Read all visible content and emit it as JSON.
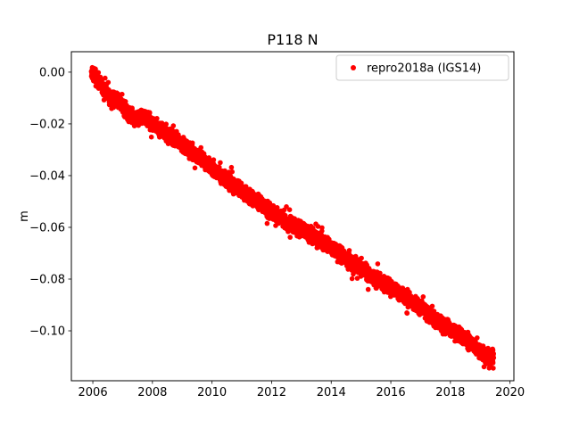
{
  "figure": {
    "title": "P118 N",
    "background_color": "#ffffff"
  },
  "legend": {
    "label": "repro2018a (IGS14)",
    "marker_color": "#ff0000",
    "position": "upper right",
    "border_color": "#cccccc"
  },
  "chart_data": {
    "type": "scatter",
    "title": "P118 N",
    "xlabel": "",
    "ylabel": "m",
    "grid": false,
    "legend_position": "upper right",
    "xlim": [
      2005.28,
      2020.13
    ],
    "ylim": [
      -0.1193,
      0.0079
    ],
    "xticks": [
      2006,
      2008,
      2010,
      2012,
      2014,
      2016,
      2018,
      2020
    ],
    "xtick_labels": [
      "2006",
      "2008",
      "2010",
      "2012",
      "2014",
      "2016",
      "2018",
      "2020"
    ],
    "yticks": [
      0.0,
      -0.02,
      -0.04,
      -0.06,
      -0.08,
      -0.1
    ],
    "ytick_labels": [
      "0.00",
      "−0.02",
      "−0.04",
      "−0.06",
      "−0.08",
      "−0.10"
    ],
    "series": [
      {
        "name": "repro2018a (IGS14)",
        "color": "#ff0000",
        "marker": "circle",
        "marker_radius_px": 2.8,
        "x_start": 2005.95,
        "x_end": 2019.45,
        "points_per_year": 260,
        "noise_halfwidth_m": 0.0028,
        "trend_knots": [
          [
            2005.95,
            0.0
          ],
          [
            2006.1,
            -0.002
          ],
          [
            2006.35,
            -0.006
          ],
          [
            2006.6,
            -0.011
          ],
          [
            2006.85,
            -0.011
          ],
          [
            2007.1,
            -0.015
          ],
          [
            2007.45,
            -0.018
          ],
          [
            2007.75,
            -0.017
          ],
          [
            2008.0,
            -0.02
          ],
          [
            2008.4,
            -0.023
          ],
          [
            2008.8,
            -0.026
          ],
          [
            2009.2,
            -0.03
          ],
          [
            2009.6,
            -0.033
          ],
          [
            2010.0,
            -0.037
          ],
          [
            2010.5,
            -0.042
          ],
          [
            2011.0,
            -0.046
          ],
          [
            2011.5,
            -0.05
          ],
          [
            2012.0,
            -0.054
          ],
          [
            2012.5,
            -0.058
          ],
          [
            2013.0,
            -0.061
          ],
          [
            2013.5,
            -0.064
          ],
          [
            2014.0,
            -0.068
          ],
          [
            2014.5,
            -0.072
          ],
          [
            2015.0,
            -0.076
          ],
          [
            2015.5,
            -0.08
          ],
          [
            2016.0,
            -0.083
          ],
          [
            2016.5,
            -0.087
          ],
          [
            2017.0,
            -0.091
          ],
          [
            2017.5,
            -0.096
          ],
          [
            2018.0,
            -0.099
          ],
          [
            2018.5,
            -0.103
          ],
          [
            2019.0,
            -0.108
          ],
          [
            2019.25,
            -0.11
          ],
          [
            2019.45,
            -0.11
          ]
        ],
        "outliers": [
          [
            2011.85,
            -0.0585
          ],
          [
            2018.15,
            -0.104
          ]
        ]
      }
    ]
  }
}
